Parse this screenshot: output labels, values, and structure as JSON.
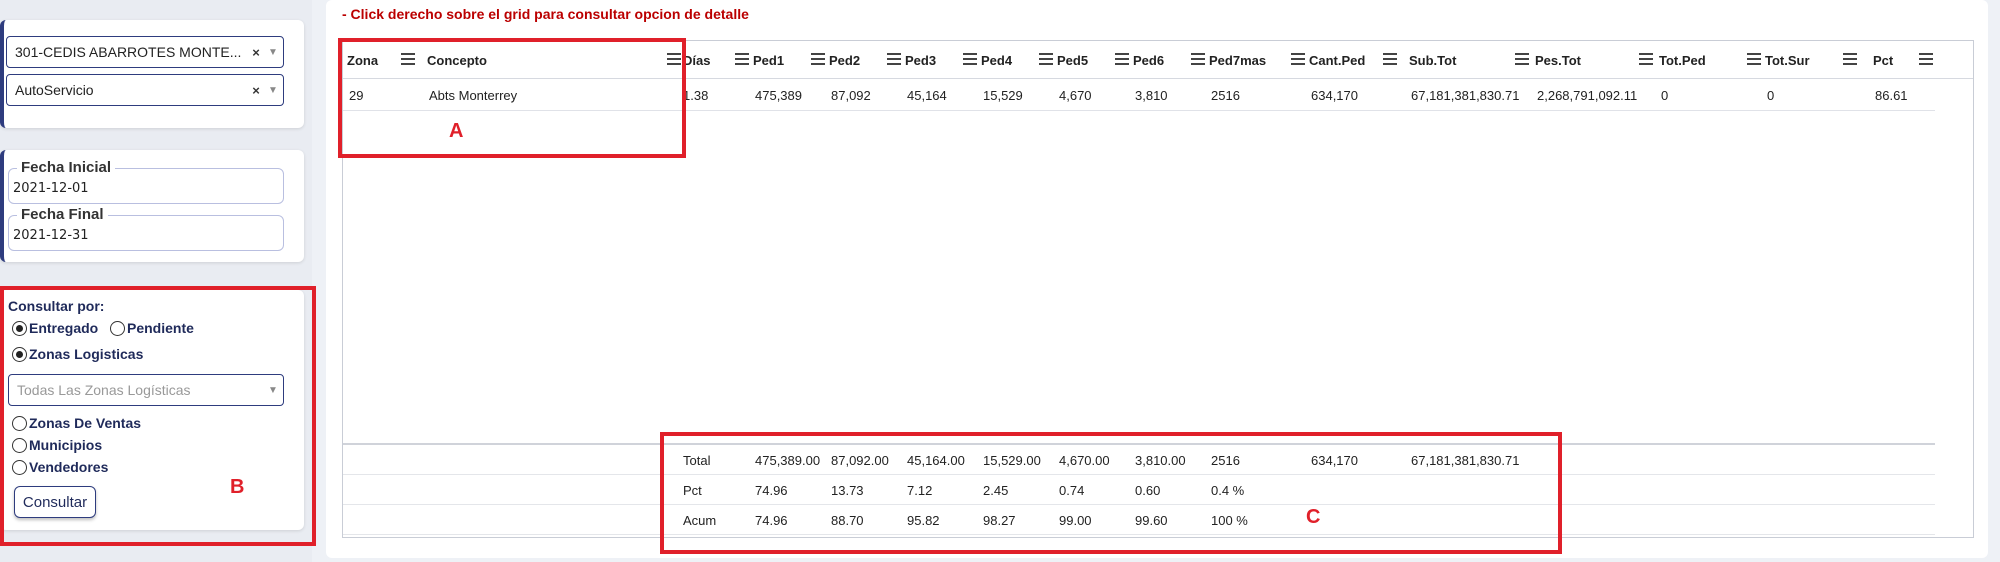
{
  "sidebar": {
    "cedis_select": "301-CEDIS ABARROTES MONTE...",
    "canal_select": "AutoServicio",
    "fecha_inicial_label": "Fecha Inicial",
    "fecha_inicial_value": "2021-12-01",
    "fecha_final_label": "Fecha Final",
    "fecha_final_value": "2021-12-31",
    "consultar_por_label": "Consultar por:",
    "radio_entregado": "Entregado",
    "radio_pendiente": "Pendiente",
    "radio_zonas_logisticas": "Zonas Logisticas",
    "zonas_select": "Todas Las Zonas Logísticas",
    "radio_zonas_ventas": "Zonas De Ventas",
    "radio_municipios": "Municipios",
    "radio_vendedores": "Vendedores",
    "consultar_button": "Consultar"
  },
  "main": {
    "hint": "- Click derecho sobre el grid para consultar opcion de detalle"
  },
  "grid": {
    "columns": [
      "Zona",
      "Concepto",
      "Días",
      "Ped1",
      "Ped2",
      "Ped3",
      "Ped4",
      "Ped5",
      "Ped6",
      "Ped7mas",
      "Cant.Ped",
      "Sub.Tot",
      "Pes.Tot",
      "Tot.Ped",
      "Tot.Sur",
      "Pct"
    ],
    "row": [
      "29",
      "Abts Monterrey",
      "1.38",
      "475,389",
      "87,092",
      "45,164",
      "15,529",
      "4,670",
      "3,810",
      "2516",
      "634,170",
      "67,181,381,830.71",
      "2,268,791,092.11",
      "0",
      "0",
      "86.61"
    ],
    "totals": [
      [
        "Total",
        "475,389.00",
        "87,092.00",
        "45,164.00",
        "15,529.00",
        "4,670.00",
        "3,810.00",
        "2516",
        "634,170",
        "67,181,381,830.71"
      ],
      [
        "Pct",
        "74.96",
        "13.73",
        "7.12",
        "2.45",
        "0.74",
        "0.60",
        "0.4 %",
        "",
        ""
      ],
      [
        "Acum",
        "74.96",
        "88.70",
        "95.82",
        "98.27",
        "99.00",
        "99.60",
        "100 %",
        "",
        ""
      ]
    ]
  },
  "annotations": {
    "a": "A",
    "b": "B",
    "c": "C"
  },
  "colors": {
    "accent": "#2e3c7e",
    "hint": "#bb0000",
    "annotation": "#e0202a"
  }
}
